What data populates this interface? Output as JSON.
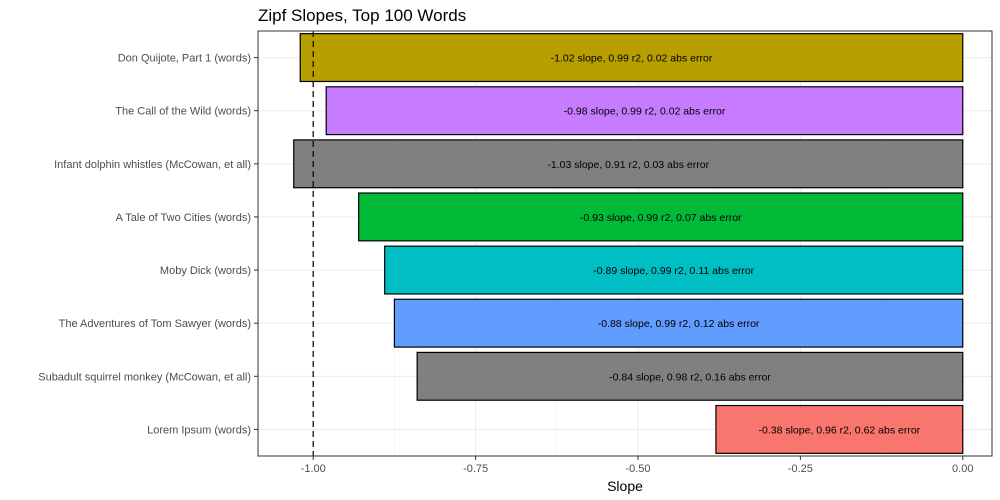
{
  "chart_data": {
    "type": "bar",
    "orientation": "horizontal",
    "title": "Zipf Slopes, Top 100 Words",
    "xlabel": "Slope",
    "ylabel": "",
    "xlim": [
      -1.085,
      0.045
    ],
    "x_ticks": [
      -1.0,
      -0.75,
      -0.5,
      -0.25,
      0.0
    ],
    "x_tick_labels": [
      "-1.00",
      "-0.75",
      "-0.50",
      "-0.25",
      "0.00"
    ],
    "reference_line": {
      "x": -1.0,
      "style": "dashed"
    },
    "grid": true,
    "legend": "none",
    "bars": [
      {
        "category": "Don Quijote, Part 1 (words)",
        "value": -1.02,
        "label": "-1.02 slope, 0.99 r2, 0.02 abs error",
        "color": "#B79F00"
      },
      {
        "category": "The Call of the Wild (words)",
        "value": -0.98,
        "label": "-0.98 slope, 0.99 r2, 0.02 abs error",
        "color": "#C77CFF"
      },
      {
        "category": "Infant dolphin whistles (McCowan, et all)",
        "value": -1.03,
        "label": "-1.03 slope, 0.91 r2, 0.03 abs error",
        "color": "#808080"
      },
      {
        "category": "A Tale of Two Cities (words)",
        "value": -0.93,
        "label": "-0.93 slope, 0.99 r2, 0.07 abs error",
        "color": "#00BA38"
      },
      {
        "category": "Moby Dick (words)",
        "value": -0.89,
        "label": "-0.89 slope, 0.99 r2, 0.11 abs error",
        "color": "#00BFC4"
      },
      {
        "category": "The Adventures of Tom Sawyer (words)",
        "value": -0.875,
        "label": "-0.88 slope, 0.99 r2, 0.12 abs error",
        "color": "#619CFF"
      },
      {
        "category": "Subadult squirrel monkey (McCowan, et all)",
        "value": -0.84,
        "label": "-0.84 slope, 0.98 r2, 0.16 abs error",
        "color": "#808080"
      },
      {
        "category": "Lorem Ipsum (words)",
        "value": -0.38,
        "label": "-0.38 slope, 0.96 r2, 0.62 abs error",
        "color": "#F8766D"
      }
    ]
  }
}
